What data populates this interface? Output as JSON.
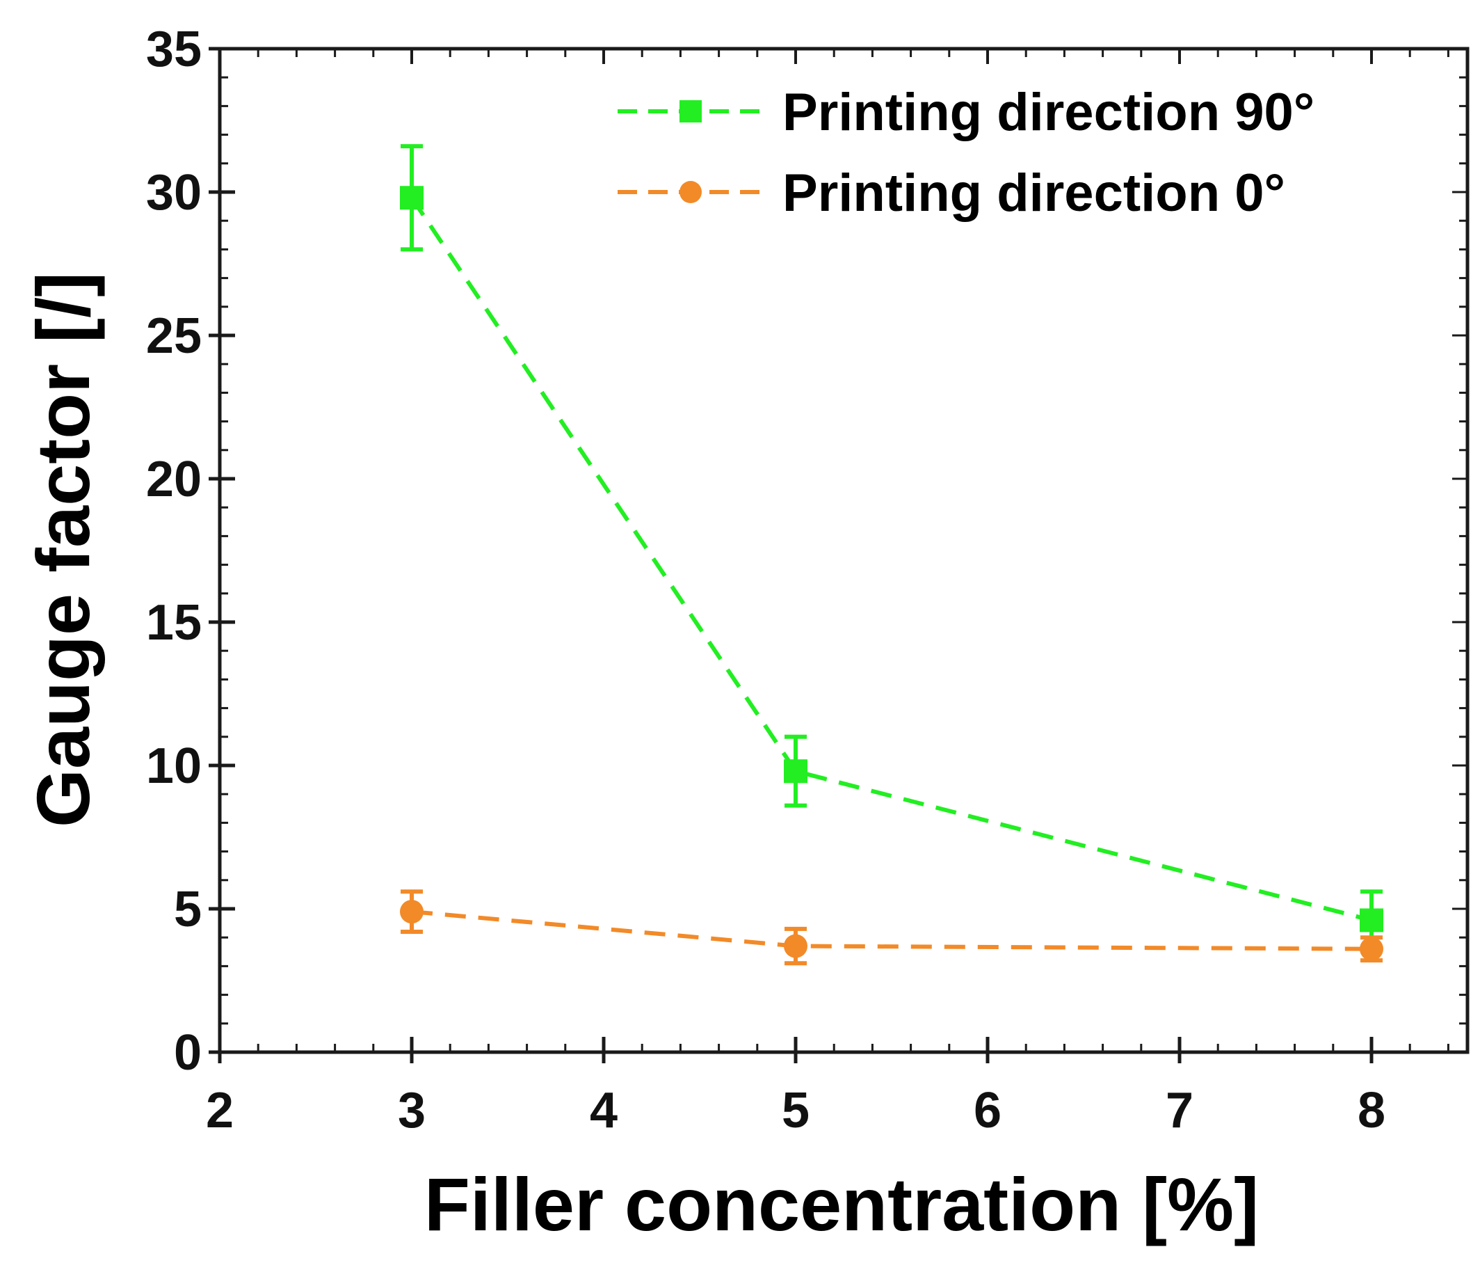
{
  "chart_data": {
    "type": "line",
    "xlabel": "Filler concentration [%]",
    "ylabel": "Gauge factor [/]",
    "xlim": [
      2,
      8
    ],
    "ylim": [
      0,
      35
    ],
    "x_tick_values": [
      2,
      3,
      4,
      5,
      6,
      7,
      8
    ],
    "x_tick_labels": [
      "2",
      "3",
      "4",
      "5",
      "6",
      "7",
      "8"
    ],
    "y_tick_values": [
      0,
      5,
      10,
      15,
      20,
      25,
      30,
      35
    ],
    "y_tick_labels": [
      "0",
      "5",
      "10",
      "15",
      "20",
      "25",
      "30",
      "35"
    ],
    "legend_position": "top-right",
    "grid": false,
    "series": [
      {
        "name": "Printing direction 90°",
        "color": "#22ee22",
        "marker": "square",
        "line_style": "dashed",
        "points": [
          {
            "x": 3,
            "y": 29.8,
            "err": 1.8
          },
          {
            "x": 5,
            "y": 9.8,
            "err": 1.2
          },
          {
            "x": 8,
            "y": 4.6,
            "err": 1.0
          }
        ]
      },
      {
        "name": "Printing direction 0°",
        "color": "#f28a28",
        "marker": "circle",
        "line_style": "dashed",
        "points": [
          {
            "x": 3,
            "y": 4.9,
            "err": 0.7
          },
          {
            "x": 5,
            "y": 3.7,
            "err": 0.6
          },
          {
            "x": 8,
            "y": 3.6,
            "err": 0.4
          }
        ]
      }
    ]
  }
}
